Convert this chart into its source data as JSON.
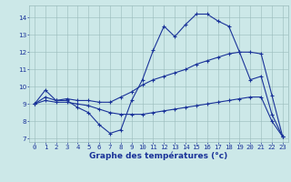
{
  "xlabel": "Graphe des températures (°c)",
  "background_color": "#cce8e8",
  "line_color": "#1a3399",
  "grid_color": "#99bbbb",
  "xlim": [
    -0.5,
    23.5
  ],
  "ylim": [
    6.8,
    14.7
  ],
  "xticks": [
    0,
    1,
    2,
    3,
    4,
    5,
    6,
    7,
    8,
    9,
    10,
    11,
    12,
    13,
    14,
    15,
    16,
    17,
    18,
    19,
    20,
    21,
    22,
    23
  ],
  "yticks": [
    7,
    8,
    9,
    10,
    11,
    12,
    13,
    14
  ],
  "series1_y": [
    9.0,
    9.8,
    9.2,
    9.2,
    8.8,
    8.5,
    7.8,
    7.3,
    7.5,
    9.2,
    10.4,
    12.1,
    13.5,
    12.9,
    13.6,
    14.2,
    14.2,
    13.8,
    13.5,
    12.0,
    10.4,
    10.6,
    8.4,
    7.1
  ],
  "series2_y": [
    9.0,
    9.4,
    9.2,
    9.3,
    9.2,
    9.2,
    9.1,
    9.1,
    9.4,
    9.7,
    10.1,
    10.4,
    10.6,
    10.8,
    11.0,
    11.3,
    11.5,
    11.7,
    11.9,
    12.0,
    12.0,
    11.9,
    9.5,
    7.1
  ],
  "series3_y": [
    9.0,
    9.2,
    9.1,
    9.1,
    9.0,
    8.9,
    8.7,
    8.5,
    8.4,
    8.4,
    8.4,
    8.5,
    8.6,
    8.7,
    8.8,
    8.9,
    9.0,
    9.1,
    9.2,
    9.3,
    9.4,
    9.4,
    8.0,
    7.1
  ],
  "tick_fontsize": 5.2,
  "xlabel_fontsize": 6.5,
  "marker_size": 2.5,
  "line_width": 0.8
}
